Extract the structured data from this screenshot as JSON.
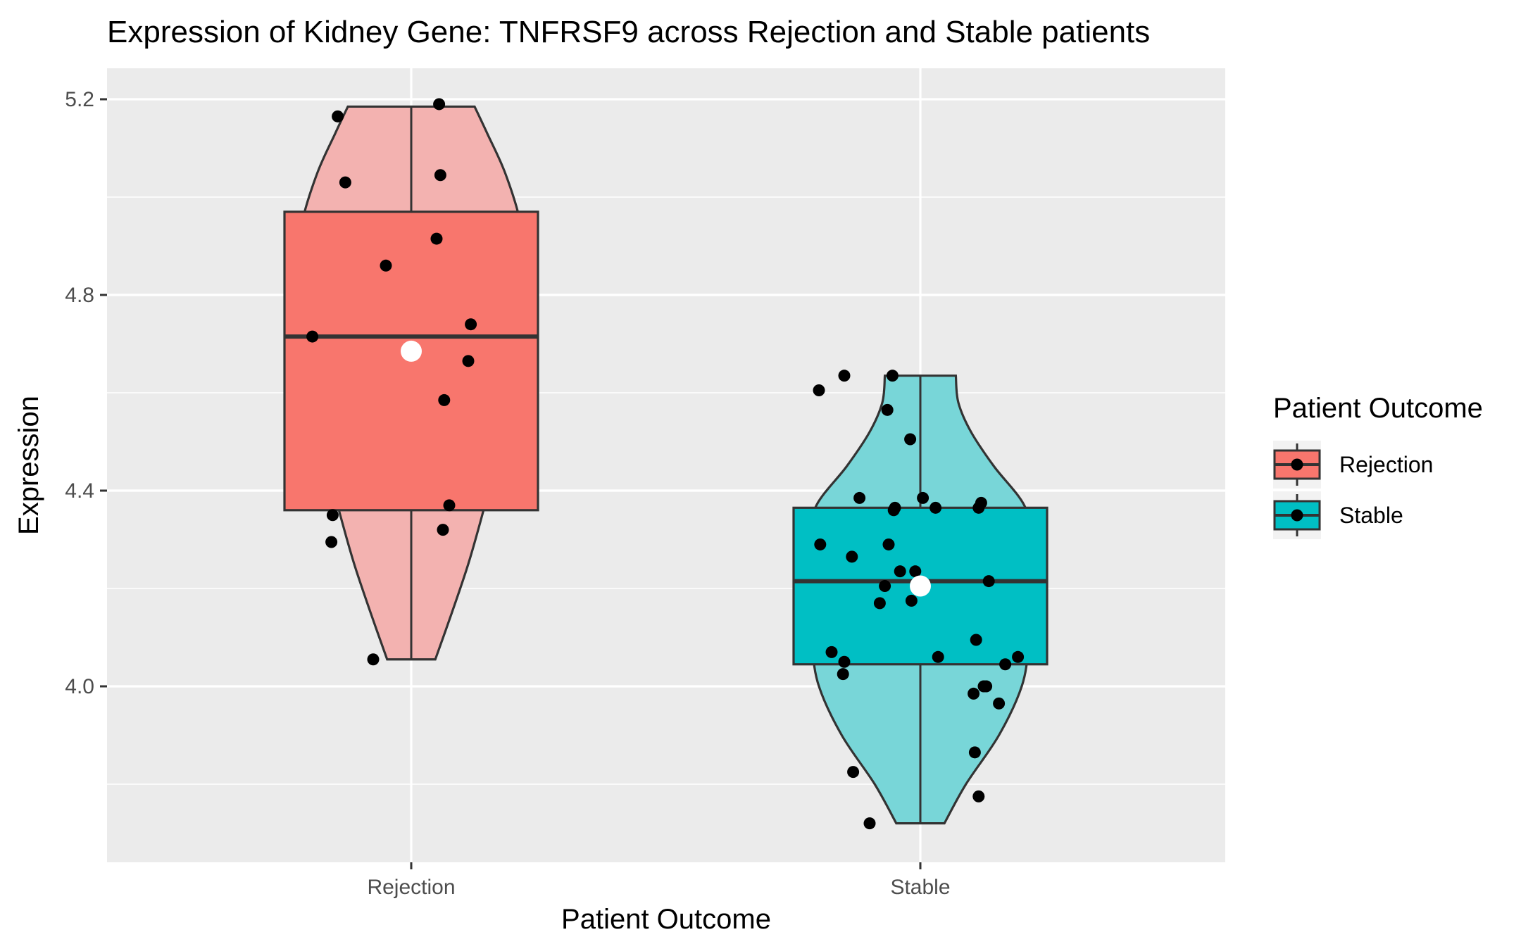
{
  "chart_data": {
    "type": "violin",
    "title": "Expression of Kidney Gene:  TNFRSF9  across Rejection and Stable patients",
    "xlabel": "Patient Outcome",
    "ylabel": "Expression",
    "categories": [
      "Rejection",
      "Stable"
    ],
    "ylim": [
      3.65,
      5.26
    ],
    "y_ticks": [
      4.0,
      4.4,
      4.8,
      5.2
    ],
    "y_minor_ticks": [
      3.8,
      4.2,
      4.6,
      5.0
    ],
    "grid": true,
    "legend": {
      "title": "Patient Outcome",
      "position": "right",
      "entries": [
        {
          "label": "Rejection",
          "color": "#F8766D"
        },
        {
          "label": "Stable",
          "color": "#00BFC4"
        }
      ]
    },
    "series": [
      {
        "name": "Rejection",
        "color": "#F8766D",
        "violin_color": "#F3B2B0",
        "box": {
          "whisker_low": 4.055,
          "q1": 4.36,
          "median": 4.715,
          "q3": 4.97,
          "whisker_high": 5.185
        },
        "mean": 4.685,
        "violin_profile": [
          {
            "y": 4.055,
            "w": 0.19
          },
          {
            "y": 4.15,
            "w": 0.32
          },
          {
            "y": 4.25,
            "w": 0.45
          },
          {
            "y": 4.35,
            "w": 0.56
          },
          {
            "y": 4.45,
            "w": 0.66
          },
          {
            "y": 4.55,
            "w": 0.76
          },
          {
            "y": 4.65,
            "w": 0.85
          },
          {
            "y": 4.75,
            "w": 0.91
          },
          {
            "y": 4.85,
            "w": 0.91
          },
          {
            "y": 4.95,
            "w": 0.86
          },
          {
            "y": 5.05,
            "w": 0.74
          },
          {
            "y": 5.13,
            "w": 0.6
          },
          {
            "y": 5.185,
            "w": 0.5
          }
        ],
        "points": [
          {
            "dx": -0.78,
            "y": 4.715
          },
          {
            "dx": -0.58,
            "y": 5.165
          },
          {
            "dx": -0.52,
            "y": 5.03
          },
          {
            "dx": -0.62,
            "y": 4.35
          },
          {
            "dx": -0.63,
            "y": 4.295
          },
          {
            "dx": -0.3,
            "y": 4.055
          },
          {
            "dx": -0.2,
            "y": 4.86
          },
          {
            "dx": 0.2,
            "y": 4.915
          },
          {
            "dx": 0.22,
            "y": 5.19
          },
          {
            "dx": 0.23,
            "y": 5.045
          },
          {
            "dx": 0.26,
            "y": 4.585
          },
          {
            "dx": 0.25,
            "y": 4.32
          },
          {
            "dx": 0.3,
            "y": 4.37
          },
          {
            "dx": 0.45,
            "y": 4.665
          },
          {
            "dx": 0.47,
            "y": 4.74
          }
        ]
      },
      {
        "name": "Stable",
        "color": "#00BFC4",
        "violin_color": "#78D6D8",
        "box": {
          "whisker_low": 3.72,
          "q1": 4.045,
          "median": 4.215,
          "q3": 4.365,
          "whisker_high": 4.635
        },
        "mean": 4.205,
        "violin_profile": [
          {
            "y": 3.72,
            "w": 0.19
          },
          {
            "y": 3.8,
            "w": 0.36
          },
          {
            "y": 3.9,
            "w": 0.62
          },
          {
            "y": 4.0,
            "w": 0.8
          },
          {
            "y": 4.08,
            "w": 0.85
          },
          {
            "y": 4.15,
            "w": 0.84
          },
          {
            "y": 4.22,
            "w": 0.88
          },
          {
            "y": 4.29,
            "w": 0.9
          },
          {
            "y": 4.37,
            "w": 0.82
          },
          {
            "y": 4.45,
            "w": 0.58
          },
          {
            "y": 4.52,
            "w": 0.4
          },
          {
            "y": 4.58,
            "w": 0.3
          },
          {
            "y": 4.635,
            "w": 0.28
          }
        ],
        "points": [
          {
            "dx": -0.8,
            "y": 4.605
          },
          {
            "dx": -0.6,
            "y": 4.635
          },
          {
            "dx": -0.79,
            "y": 4.29
          },
          {
            "dx": -0.7,
            "y": 4.07
          },
          {
            "dx": -0.6,
            "y": 4.05
          },
          {
            "dx": -0.61,
            "y": 4.025
          },
          {
            "dx": -0.54,
            "y": 4.265
          },
          {
            "dx": -0.53,
            "y": 3.825
          },
          {
            "dx": -0.48,
            "y": 4.385
          },
          {
            "dx": -0.4,
            "y": 3.72
          },
          {
            "dx": -0.32,
            "y": 4.17
          },
          {
            "dx": -0.28,
            "y": 4.205
          },
          {
            "dx": -0.26,
            "y": 4.565
          },
          {
            "dx": -0.25,
            "y": 4.29
          },
          {
            "dx": -0.22,
            "y": 4.635
          },
          {
            "dx": -0.21,
            "y": 4.36
          },
          {
            "dx": -0.2,
            "y": 4.365
          },
          {
            "dx": -0.16,
            "y": 4.235
          },
          {
            "dx": -0.08,
            "y": 4.505
          },
          {
            "dx": -0.07,
            "y": 4.175
          },
          {
            "dx": -0.04,
            "y": 4.235
          },
          {
            "dx": 0.02,
            "y": 4.385
          },
          {
            "dx": 0.12,
            "y": 4.365
          },
          {
            "dx": 0.14,
            "y": 4.06
          },
          {
            "dx": 0.42,
            "y": 3.985
          },
          {
            "dx": 0.43,
            "y": 3.865
          },
          {
            "dx": 0.44,
            "y": 4.095
          },
          {
            "dx": 0.46,
            "y": 3.775
          },
          {
            "dx": 0.46,
            "y": 4.365
          },
          {
            "dx": 0.48,
            "y": 4.375
          },
          {
            "dx": 0.5,
            "y": 4.0
          },
          {
            "dx": 0.52,
            "y": 4.0
          },
          {
            "dx": 0.54,
            "y": 4.215
          },
          {
            "dx": 0.62,
            "y": 3.965
          },
          {
            "dx": 0.67,
            "y": 4.045
          },
          {
            "dx": 0.77,
            "y": 4.06
          }
        ]
      }
    ]
  }
}
